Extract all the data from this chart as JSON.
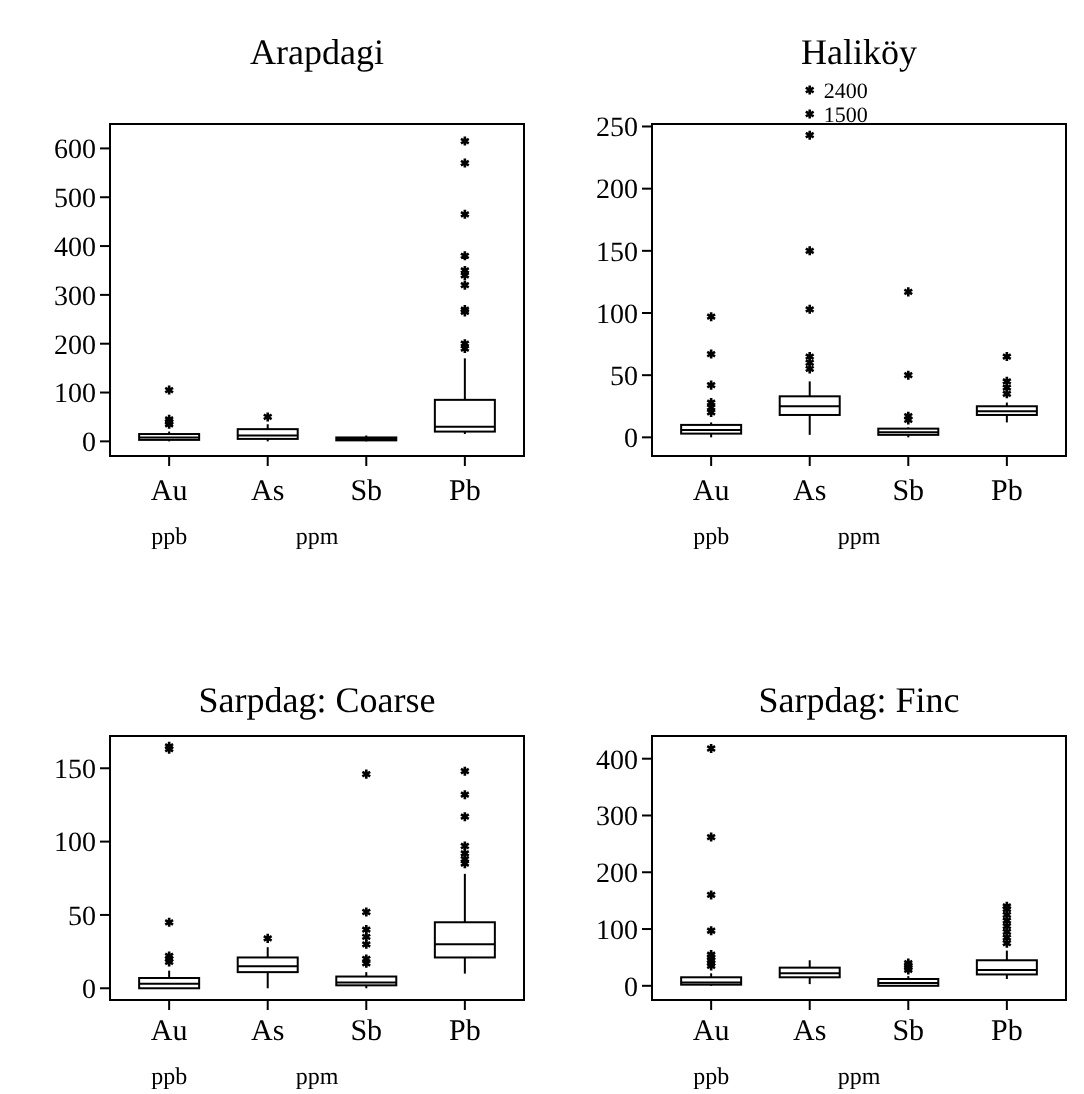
{
  "chart_data": [
    {
      "type": "box",
      "title": "Arapdagi",
      "categories": [
        "Au",
        "As",
        "Sb",
        "Pb"
      ],
      "ylim": [
        -30,
        650
      ],
      "yticks": [
        0,
        100,
        200,
        300,
        400,
        500,
        600
      ],
      "annotations": [
        "ppb",
        "ppm"
      ],
      "boxes": [
        {
          "low": 0,
          "q1": 3,
          "median": 8,
          "q3": 15,
          "high": 20,
          "outliers": [
            35,
            40,
            45,
            105
          ]
        },
        {
          "low": 0,
          "q1": 5,
          "median": 12,
          "q3": 25,
          "high": 35,
          "outliers": [
            50
          ]
        },
        {
          "low": 0,
          "q1": 2,
          "median": 5,
          "q3": 8,
          "high": 12
        },
        {
          "low": 15,
          "q1": 20,
          "median": 30,
          "q3": 85,
          "high": 170,
          "outliers": [
            190,
            200,
            265,
            270,
            320,
            340,
            350,
            380,
            465,
            570,
            615
          ]
        }
      ]
    },
    {
      "type": "box",
      "title": "Haliköy",
      "categories": [
        "Au",
        "As",
        "Sb",
        "Pb"
      ],
      "ylim": [
        -15,
        252
      ],
      "yticks": [
        0,
        50,
        100,
        150,
        200,
        250
      ],
      "annotations": [
        "ppb",
        "ppm",
        "2400",
        "1500"
      ],
      "boxes": [
        {
          "low": 0,
          "q1": 3,
          "median": 6,
          "q3": 10,
          "high": 12,
          "outliers": [
            20,
            24,
            28,
            42,
            67,
            97
          ]
        },
        {
          "low": 2,
          "q1": 18,
          "median": 25,
          "q3": 33,
          "high": 45,
          "outliers": [
            55,
            60,
            65,
            103,
            150,
            243
          ]
        },
        {
          "low": 0,
          "q1": 2,
          "median": 4,
          "q3": 7,
          "high": 8,
          "outliers": [
            14,
            17,
            50,
            117
          ]
        },
        {
          "low": 12,
          "q1": 18,
          "median": 21,
          "q3": 25,
          "high": 28,
          "outliers": [
            35,
            40,
            45,
            65
          ]
        }
      ]
    },
    {
      "type": "box",
      "title": "Sarpdag: Coarse",
      "categories": [
        "Au",
        "As",
        "Sb",
        "Pb"
      ],
      "ylim": [
        -8,
        172
      ],
      "yticks": [
        0,
        50,
        100,
        150
      ],
      "annotations": [
        "ppb",
        "ppm"
      ],
      "boxes": [
        {
          "low": 0,
          "q1": 0,
          "median": 3,
          "q3": 7,
          "high": 12,
          "outliers": [
            18,
            20,
            22,
            45,
            163,
            165
          ]
        },
        {
          "low": 0,
          "q1": 11,
          "median": 15,
          "q3": 21,
          "high": 28,
          "outliers": [
            34
          ]
        },
        {
          "low": 0,
          "q1": 2,
          "median": 4,
          "q3": 8,
          "high": 11,
          "outliers": [
            17,
            20,
            30,
            35,
            40,
            52,
            146
          ]
        },
        {
          "low": 10,
          "q1": 21,
          "median": 30,
          "q3": 45,
          "high": 78,
          "outliers": [
            85,
            88,
            92,
            97,
            117,
            132,
            148
          ]
        }
      ]
    },
    {
      "type": "box",
      "title": "Sarpdag: Finc",
      "categories": [
        "Au",
        "As",
        "Sb",
        "Pb"
      ],
      "ylim": [
        -25,
        440
      ],
      "yticks": [
        0,
        100,
        200,
        300,
        400
      ],
      "annotations": [
        "ppb",
        "ppm"
      ],
      "boxes": [
        {
          "low": 0,
          "q1": 2,
          "median": 6,
          "q3": 15,
          "high": 22,
          "outliers": [
            35,
            40,
            45,
            50,
            55,
            97,
            160,
            262,
            418
          ]
        },
        {
          "low": 3,
          "q1": 15,
          "median": 22,
          "q3": 32,
          "high": 45
        },
        {
          "low": 0,
          "q1": 0,
          "median": 5,
          "q3": 12,
          "high": 17,
          "outliers": [
            28,
            32,
            36,
            40
          ]
        },
        {
          "low": 12,
          "q1": 20,
          "median": 28,
          "q3": 45,
          "high": 62,
          "outliers": [
            75,
            85,
            95,
            105,
            115,
            125,
            135,
            140
          ]
        }
      ]
    }
  ]
}
